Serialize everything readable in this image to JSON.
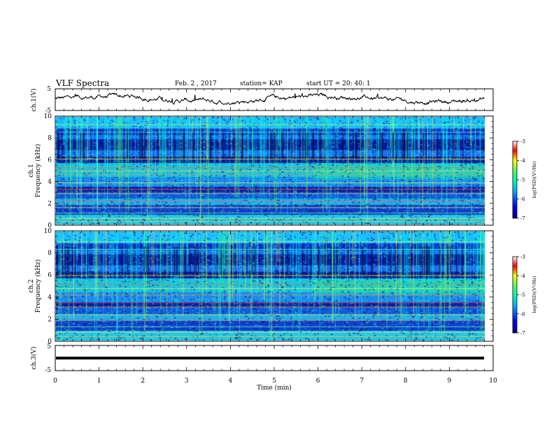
{
  "header": {
    "title": "VLF Spectra",
    "date": "Feb. 2 , 2017",
    "station": "station= KAP",
    "start": "start  UT =   20: 40: 1"
  },
  "chart_data": [
    {
      "type": "line",
      "ylabel": "ch.1(V)",
      "ylim": [
        -5,
        5
      ],
      "yticks": [
        "5",
        "-5"
      ],
      "xlim": [
        0,
        10
      ],
      "trace_level": 0.4,
      "trace_noise": 1.1
    },
    {
      "type": "heatmap",
      "ylabel": "ch.1\nFrequency (kHz)",
      "ylabel_top": "ch.1",
      "ylabel_bottom": "Frequency (kHz)",
      "ylim": [
        0,
        10
      ],
      "yticks": [
        "0",
        "2",
        "4",
        "6",
        "8",
        "10"
      ],
      "xlim": [
        0,
        10
      ],
      "colorbar": {
        "label": "log(PSD)(V²/Hz)",
        "range": [
          -7,
          -3
        ],
        "ticks": [
          "-3",
          "-4",
          "-5",
          "-6",
          "-7"
        ],
        "colors": [
          "#000080",
          "#0000ff",
          "#00ffff",
          "#00ff80",
          "#ffff00",
          "#ff0000",
          "#ffffff"
        ]
      }
    },
    {
      "type": "heatmap",
      "ylabel": "ch.2\nFrequency (kHz)",
      "ylabel_top": "ch.2",
      "ylabel_bottom": "Frequency (kHz)",
      "ylim": [
        0,
        10
      ],
      "yticks": [
        "0",
        "2",
        "4",
        "6",
        "8",
        "10"
      ],
      "xlim": [
        0,
        10
      ],
      "colorbar": {
        "label": "log(PSD)(V²/Hz)",
        "range": [
          -7,
          -3
        ],
        "ticks": [
          "-3",
          "-4",
          "-5",
          "-6",
          "-7"
        ],
        "colors": [
          "#000080",
          "#0000ff",
          "#00ffff",
          "#00ff80",
          "#ffff00",
          "#ff0000",
          "#ffffff"
        ]
      }
    },
    {
      "type": "line",
      "ylabel": "ch.3(V)",
      "ylim": [
        -5,
        5
      ],
      "yticks": [
        "5",
        "-5"
      ],
      "xlim": [
        0,
        10
      ],
      "trace_level": 0,
      "trace_noise": 0.1,
      "xlabel": "Time (min)",
      "xticks": [
        "0",
        "1",
        "2",
        "3",
        "4",
        "5",
        "6",
        "7",
        "8",
        "9",
        "10"
      ]
    }
  ]
}
